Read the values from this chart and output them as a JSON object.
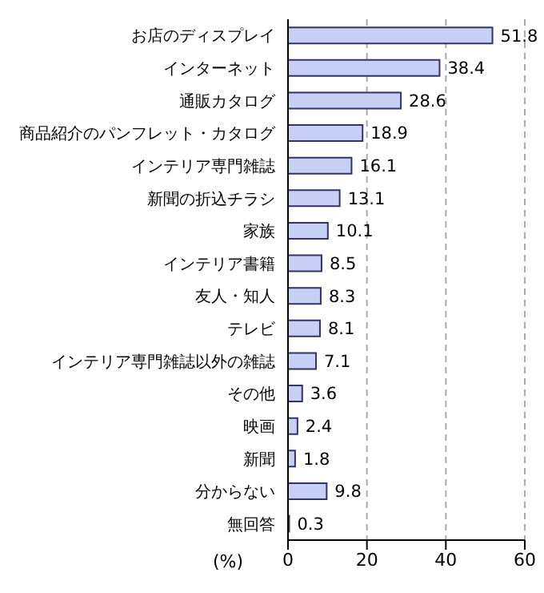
{
  "chart_data": {
    "type": "bar",
    "orientation": "horizontal",
    "categories": [
      "お店のディスプレイ",
      "インターネット",
      "通販カタログ",
      "商品紹介のパンフレット・カタログ",
      "インテリア専門雑誌",
      "新聞の折込チラシ",
      "家族",
      "インテリア書籍",
      "友人・知人",
      "テレビ",
      "インテリア専門雑誌以外の雑誌",
      "その他",
      "映画",
      "新聞",
      "分からない",
      "無回答"
    ],
    "values": [
      51.8,
      38.4,
      28.6,
      18.9,
      16.1,
      13.1,
      10.1,
      8.5,
      8.3,
      8.1,
      7.1,
      3.6,
      2.4,
      1.8,
      9.8,
      0.3
    ],
    "color": "#c8cff5",
    "xlim": [
      0,
      60
    ],
    "xticks": [
      0,
      20,
      40,
      60
    ],
    "xlabel": "(%)",
    "grid": "x",
    "data_labels": true
  }
}
